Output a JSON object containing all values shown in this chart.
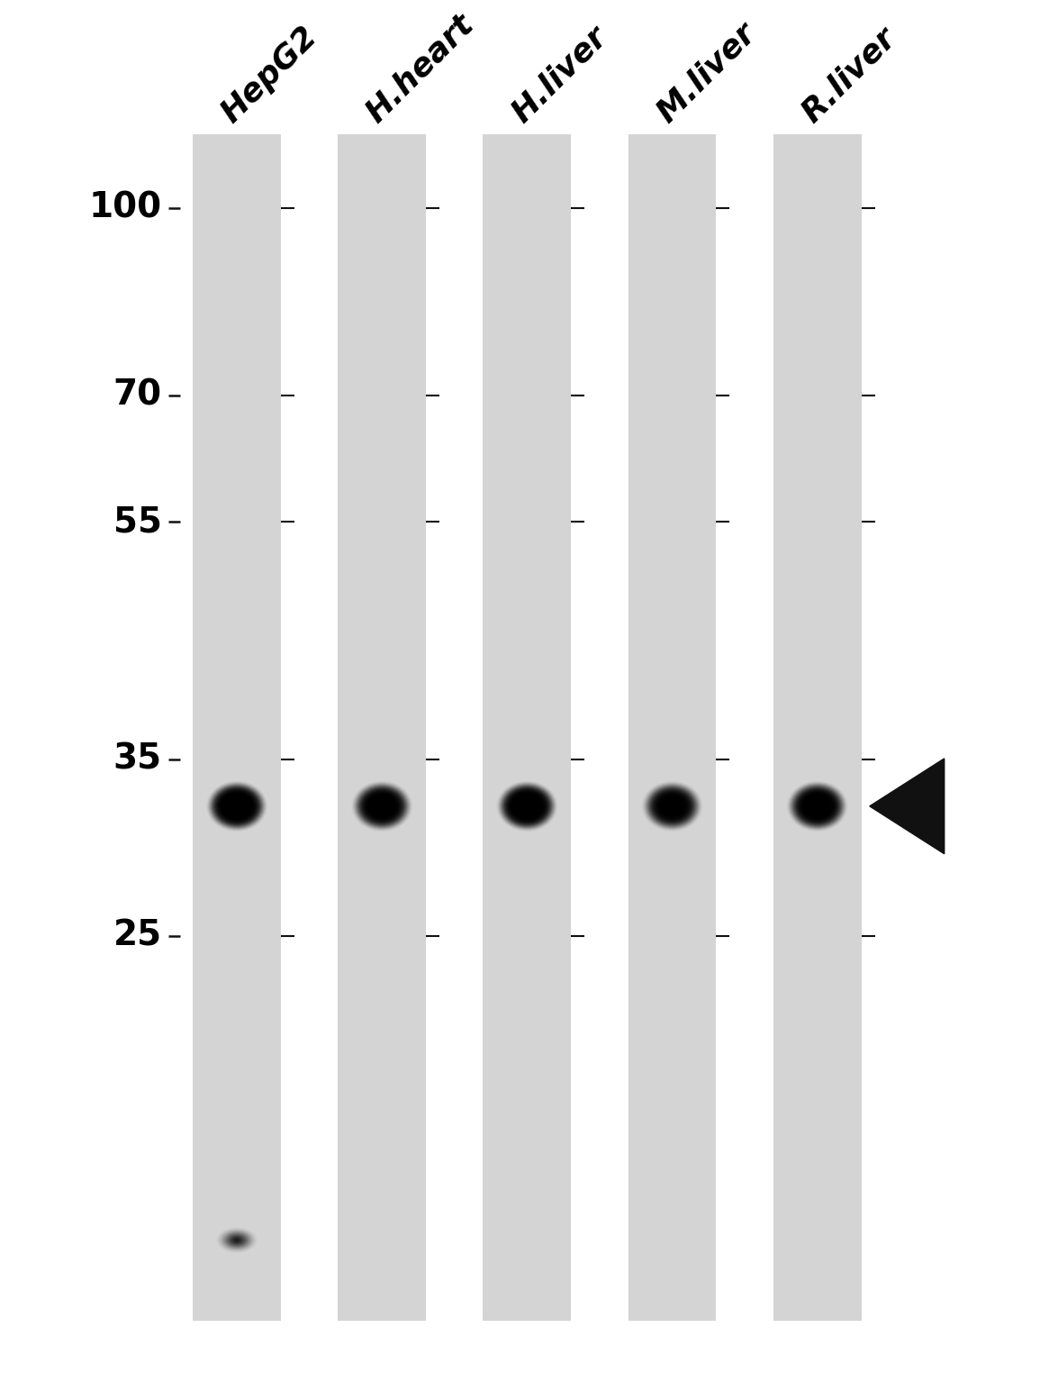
{
  "lanes": [
    "HepG2",
    "H.heart",
    "H.liver",
    "M.liver",
    "R.liver"
  ],
  "mw_markers": [
    100,
    70,
    55,
    35,
    25
  ],
  "band_mw": 32,
  "band_intensities": [
    1.0,
    0.85,
    1.0,
    0.75,
    0.9
  ],
  "extra_band_lane": 0,
  "extra_band_mw": 14,
  "extra_band_intensity": 0.25,
  "lane_color": "#d4d4d4",
  "band_color": "#0a0a0a",
  "background_color": "#ffffff",
  "marker_tick_color": "#111111",
  "arrow_color": "#111111",
  "label_fontsize": 26,
  "marker_fontsize": 28,
  "label_rotation": 45,
  "fig_width": 11.65,
  "fig_height": 15.24
}
